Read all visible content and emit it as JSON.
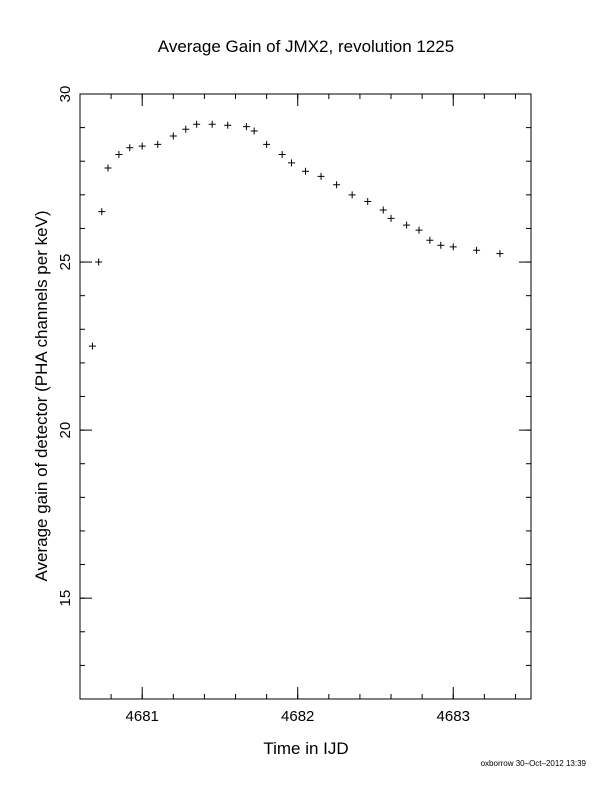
{
  "chart_data": {
    "type": "scatter",
    "title": "Average Gain of JMX2, revolution 1225",
    "xlabel": "Time in IJD",
    "ylabel": "Average gain of detector (PHA channels per keV)",
    "xlim": [
      4680.6,
      4683.5
    ],
    "ylim": [
      12,
      30
    ],
    "xticks": [
      {
        "value": 4681,
        "label": "4681"
      },
      {
        "value": 4682,
        "label": "4682"
      },
      {
        "value": 4683,
        "label": "4683"
      }
    ],
    "yticks": [
      {
        "value": 15,
        "label": "15"
      },
      {
        "value": 20,
        "label": "20"
      },
      {
        "value": 25,
        "label": "25"
      },
      {
        "value": 30,
        "label": "30"
      }
    ],
    "grid": false,
    "marker": "plus",
    "series": [
      {
        "points": [
          [
            4680.68,
            22.5
          ],
          [
            4680.72,
            25.0
          ],
          [
            4680.74,
            26.5
          ],
          [
            4680.78,
            27.8
          ],
          [
            4680.85,
            28.2
          ],
          [
            4680.92,
            28.4
          ],
          [
            4681.0,
            28.45
          ],
          [
            4681.1,
            28.5
          ],
          [
            4681.2,
            28.75
          ],
          [
            4681.28,
            28.95
          ],
          [
            4681.35,
            29.1
          ],
          [
            4681.45,
            29.1
          ],
          [
            4681.55,
            29.07
          ],
          [
            4681.67,
            29.03
          ],
          [
            4681.72,
            28.9
          ],
          [
            4681.8,
            28.5
          ],
          [
            4681.9,
            28.2
          ],
          [
            4681.96,
            27.95
          ],
          [
            4682.05,
            27.7
          ],
          [
            4682.15,
            27.55
          ],
          [
            4682.25,
            27.3
          ],
          [
            4682.35,
            27.0
          ],
          [
            4682.45,
            26.8
          ],
          [
            4682.55,
            26.55
          ],
          [
            4682.6,
            26.3
          ],
          [
            4682.7,
            26.1
          ],
          [
            4682.78,
            25.95
          ],
          [
            4682.85,
            25.65
          ],
          [
            4682.92,
            25.5
          ],
          [
            4683.0,
            25.45
          ],
          [
            4683.15,
            25.35
          ],
          [
            4683.3,
            25.25
          ]
        ]
      }
    ]
  },
  "footer": {
    "stamp": "oxborrow 30–Oct–2012 13:39"
  }
}
